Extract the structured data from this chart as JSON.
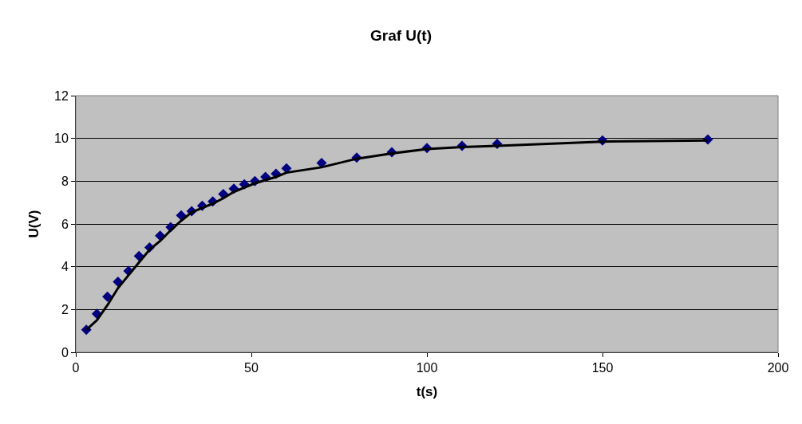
{
  "chart_data": {
    "type": "scatter",
    "title": "Graf U(t)",
    "xlabel": "t(s)",
    "ylabel": "U(V)",
    "x": [
      3,
      6,
      9,
      12,
      15,
      18,
      21,
      24,
      27,
      30,
      33,
      36,
      39,
      42,
      45,
      48,
      51,
      54,
      57,
      60,
      70,
      80,
      90,
      100,
      110,
      120,
      150,
      180
    ],
    "series": [
      {
        "color": "#000080",
        "marker": "diamond",
        "values": [
          1.05,
          1.8,
          2.6,
          3.3,
          3.8,
          4.5,
          4.9,
          5.45,
          5.85,
          6.4,
          6.6,
          6.85,
          7.05,
          7.4,
          7.65,
          7.85,
          8.0,
          8.2,
          8.35,
          8.6,
          8.85,
          9.1,
          9.35,
          9.55,
          9.65,
          9.75,
          9.9,
          9.95
        ]
      },
      {
        "type": "line",
        "color": "#000000",
        "marker": "none",
        "line_style": "solid",
        "values": [
          1.05,
          1.5,
          2.2,
          3.0,
          3.6,
          4.2,
          4.8,
          5.2,
          5.7,
          6.15,
          6.55,
          6.75,
          6.95,
          7.2,
          7.5,
          7.7,
          7.9,
          8.05,
          8.2,
          8.4,
          8.65,
          9.05,
          9.3,
          9.5,
          9.6,
          9.65,
          9.85,
          9.9
        ]
      }
    ],
    "xlim": [
      0,
      200
    ],
    "xticks": [
      0,
      50,
      100,
      150,
      200
    ],
    "ylim": [
      0,
      12
    ],
    "yticks": [
      0,
      2,
      4,
      6,
      8,
      10,
      12
    ],
    "grid": "y",
    "legend": false
  }
}
